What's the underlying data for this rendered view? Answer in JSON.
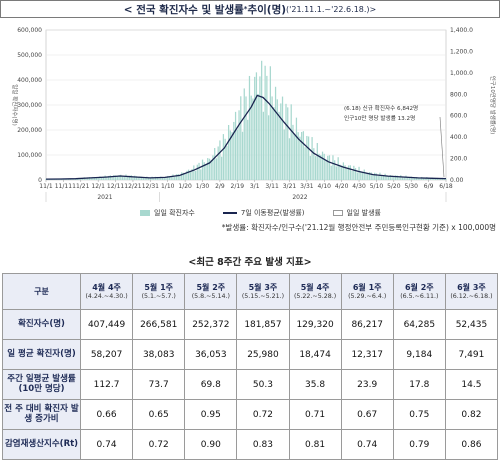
{
  "header": {
    "title_main": "< 전국 확진자수 및 발생률",
    "title_sup": "*",
    "title_tail": " 추이(명)",
    "title_range": "('21.11.1.~'22.6.18.)>"
  },
  "chart_data": {
    "type": "bar+line",
    "left_axis": {
      "ticks": [
        "0",
        "100,000",
        "200,000",
        "300,000",
        "400,000",
        "500,000",
        "600,000"
      ],
      "label": "일일 확진자수(명)",
      "ylim": [
        0,
        600000
      ]
    },
    "right_axis": {
      "ticks": [
        "0.00",
        "200.0",
        "400.0",
        "600.0",
        "800.0",
        "1,000.0",
        "1,200.0",
        "1,400.0"
      ],
      "label": "인구10만명당 발생률(명)",
      "ylim": [
        0,
        1400
      ]
    },
    "x_ticks": [
      "11/1",
      "11/11",
      "11/21",
      "12/1",
      "12/11",
      "12/21",
      "12/31",
      "1/10",
      "1/20",
      "1/30",
      "2/9",
      "2/19",
      "3/1",
      "3/11",
      "3/21",
      "3/31",
      "4/10",
      "4/20",
      "4/30",
      "5/10",
      "5/20",
      "5/30",
      "6/9",
      "6/18"
    ],
    "x_ticks_display": [
      "11/1",
      "11/11",
      "11/21",
      "12/1",
      "12/11",
      "12/21",
      "12/31",
      "1/10",
      "1/20",
      "1/30",
      "2/9",
      "2/19",
      "3/1",
      "3/11",
      "3/21",
      "3/31",
      "4/10",
      "4/20",
      "4/30",
      "5/10",
      "5/20",
      "5/30",
      "6/9",
      "6/18"
    ],
    "year_labels": [
      "2021",
      "2022"
    ],
    "annotation_line1": "(6.18) 신규 확진자수 6,842명",
    "annotation_line2": "인구10만 명당 발생률 13.2명",
    "series": [
      {
        "name": "일일 확진자수",
        "color": "#a8d8cf"
      },
      {
        "name": "7일 이동평균(발생률)",
        "color": "#1a2550"
      },
      {
        "name": "일일 발생률",
        "color": "#ffffff"
      }
    ],
    "moving_avg_rate": [
      [
        0,
        8
      ],
      [
        10,
        9
      ],
      [
        20,
        12
      ],
      [
        30,
        20
      ],
      [
        40,
        27
      ],
      [
        50,
        37
      ],
      [
        60,
        28
      ],
      [
        70,
        20
      ],
      [
        80,
        24
      ],
      [
        90,
        43
      ],
      [
        100,
        95
      ],
      [
        110,
        160
      ],
      [
        120,
        300
      ],
      [
        130,
        520
      ],
      [
        138,
        680
      ],
      [
        142,
        790
      ],
      [
        146,
        770
      ],
      [
        150,
        715
      ],
      [
        160,
        540
      ],
      [
        170,
        380
      ],
      [
        180,
        250
      ],
      [
        190,
        170
      ],
      [
        200,
        120
      ],
      [
        210,
        80
      ],
      [
        220,
        50
      ],
      [
        230,
        36
      ],
      [
        240,
        28
      ],
      [
        250,
        20
      ],
      [
        260,
        16
      ],
      [
        269,
        13
      ]
    ]
  },
  "note": "*발생률: 확진자수/인구수('21.12월 행정안전부 주민등록인구현황 기준) x 100,000명",
  "subtitle": "<최근 8주간 주요 발생 지표>",
  "table": {
    "corner": "구분",
    "columns": [
      {
        "week": "4월 4주",
        "range": "(4.24.~4.30.)"
      },
      {
        "week": "5월 1주",
        "range": "(5.1.~5.7.)"
      },
      {
        "week": "5월 2주",
        "range": "(5.8.~5.14.)"
      },
      {
        "week": "5월 3주",
        "range": "(5.15.~5.21.)"
      },
      {
        "week": "5월 4주",
        "range": "(5.22.~5.28.)"
      },
      {
        "week": "6월 1주",
        "range": "(5.29.~6.4.)"
      },
      {
        "week": "6월 2주",
        "range": "(6.5.~6.11.)"
      },
      {
        "week": "6월 3주",
        "range": "(6.12.~6.18.)"
      }
    ],
    "rows": [
      {
        "label": "확진자수(명)",
        "values": [
          "407,449",
          "266,581",
          "252,372",
          "181,857",
          "129,320",
          "86,217",
          "64,285",
          "52,435"
        ]
      },
      {
        "label": "일 평균 확진자(명)",
        "values": [
          "58,207",
          "38,083",
          "36,053",
          "25,980",
          "18,474",
          "12,317",
          "9,184",
          "7,491"
        ]
      },
      {
        "label": "주간 일평균 발생률(10만 명당)",
        "values": [
          "112.7",
          "73.7",
          "69.8",
          "50.3",
          "35.8",
          "23.9",
          "17.8",
          "14.5"
        ]
      },
      {
        "label": "전 주 대비 확진자 발생 증가비",
        "values": [
          "0.66",
          "0.65",
          "0.95",
          "0.72",
          "0.71",
          "0.67",
          "0.75",
          "0.82"
        ]
      },
      {
        "label": "감염재생산지수(Rt)",
        "values": [
          "0.74",
          "0.72",
          "0.90",
          "0.83",
          "0.81",
          "0.74",
          "0.79",
          "0.86"
        ]
      }
    ]
  }
}
